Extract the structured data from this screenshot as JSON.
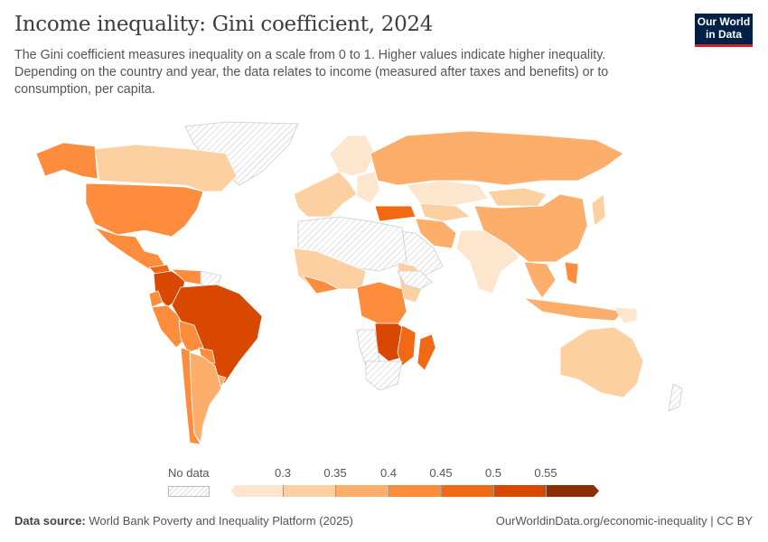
{
  "header": {
    "title": "Income inequality: Gini coefficient, 2024",
    "subtitle": "The Gini coefficient measures inequality on a scale from 0 to 1. Higher values indicate higher inequality. Depending on the country and year, the data relates to income (measured after taxes and benefits) or to consumption, per capita.",
    "logo": {
      "line1": "Our World",
      "line2": "in Data"
    }
  },
  "map": {
    "colors": {
      "no_data_hatch": "#dddddd",
      "bins": [
        "#fee6ce",
        "#fdd0a2",
        "#fdae6b",
        "#fd8d3c",
        "#f16913",
        "#d94801",
        "#8c2d04"
      ],
      "border": "#ffffff"
    }
  },
  "legend": {
    "no_data_label": "No data",
    "ticks": [
      "0.3",
      "0.35",
      "0.4",
      "0.45",
      "0.5",
      "0.55"
    ]
  },
  "footer": {
    "source_label": "Data source:",
    "source_text": "World Bank Poverty and Inequality Platform (2025)",
    "url_license": "OurWorldinData.org/economic-inequality | CC BY"
  }
}
